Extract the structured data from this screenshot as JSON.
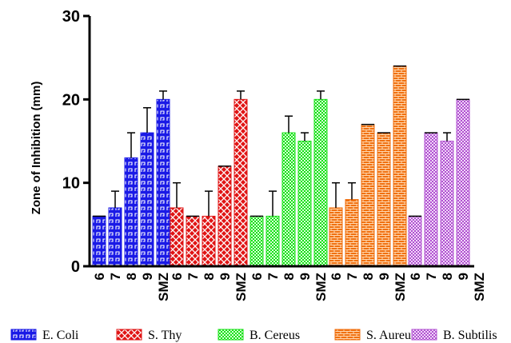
{
  "chart_data": {
    "type": "bar",
    "ylabel": "Zone of Inhibition (mm)",
    "ylim": [
      0,
      30
    ],
    "yticks": [
      0,
      10,
      20,
      30
    ],
    "tick_labels": [
      "6",
      "7",
      "8",
      "9",
      "SMZ"
    ],
    "series": [
      {
        "name": "E. Coli",
        "color": "#1a1ae6",
        "pattern": "meander",
        "values": [
          6,
          7,
          13,
          16,
          20
        ],
        "errors": [
          0,
          2,
          3,
          3,
          1
        ]
      },
      {
        "name": "S. Thy",
        "color": "#e01414",
        "pattern": "crosshatch",
        "values": [
          7,
          6,
          6,
          12,
          20
        ],
        "errors": [
          3,
          0,
          3,
          0,
          1
        ]
      },
      {
        "name": "B. Cereus",
        "color": "#14e014",
        "pattern": "fine-check",
        "values": [
          6,
          6,
          16,
          15,
          20
        ],
        "errors": [
          0,
          3,
          2,
          1,
          1
        ]
      },
      {
        "name": "S. Aureus",
        "color": "#f07010",
        "pattern": "brick",
        "values": [
          7,
          8,
          17,
          16,
          24
        ],
        "errors": [
          3,
          2,
          0,
          0,
          0
        ]
      },
      {
        "name": "B. Subtilis",
        "color": "#b050d0",
        "pattern": "fine-check",
        "values": [
          6,
          16,
          15,
          20,
          0
        ],
        "errors": [
          0,
          0,
          1,
          0,
          0
        ]
      }
    ],
    "grid": false,
    "legend_position": "bottom"
  }
}
